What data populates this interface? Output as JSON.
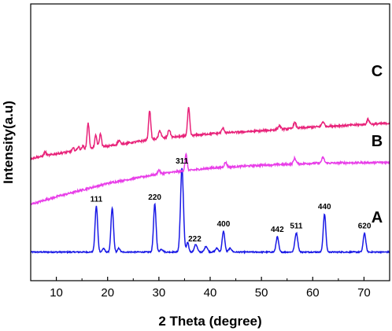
{
  "chart_data": {
    "type": "line",
    "xlabel": "2 Theta (degree)",
    "ylabel": "Intensity(a.u)",
    "xlim": [
      5,
      75
    ],
    "xticks": [
      10,
      20,
      30,
      40,
      50,
      60,
      70
    ],
    "grid": false,
    "y_ticks_shown": false,
    "series": [
      {
        "name": "A",
        "color": "#1a1ae6",
        "baseline": 10,
        "noise": 0.6,
        "peaks": [
          {
            "x": 17.8,
            "height": 48,
            "width": 0.35
          },
          {
            "x": 19.2,
            "height": 4,
            "width": 0.3
          },
          {
            "x": 20.9,
            "height": 46,
            "width": 0.35
          },
          {
            "x": 22.2,
            "height": 4,
            "width": 0.3
          },
          {
            "x": 29.2,
            "height": 50,
            "width": 0.35
          },
          {
            "x": 30.5,
            "height": 3,
            "width": 0.4
          },
          {
            "x": 34.5,
            "height": 88,
            "width": 0.4
          },
          {
            "x": 35.6,
            "height": 10,
            "width": 0.3
          },
          {
            "x": 37.2,
            "height": 8,
            "width": 0.4
          },
          {
            "x": 39.2,
            "height": 6,
            "width": 0.4
          },
          {
            "x": 41.3,
            "height": 4,
            "width": 0.4
          },
          {
            "x": 42.6,
            "height": 22,
            "width": 0.35
          },
          {
            "x": 43.9,
            "height": 4,
            "width": 0.4
          },
          {
            "x": 53.1,
            "height": 16,
            "width": 0.35
          },
          {
            "x": 56.8,
            "height": 20,
            "width": 0.4
          },
          {
            "x": 62.3,
            "height": 40,
            "width": 0.35
          },
          {
            "x": 70.1,
            "height": 20,
            "width": 0.35
          }
        ],
        "peak_labels": [
          {
            "x": 17.8,
            "text": "111"
          },
          {
            "x": 29.2,
            "text": "220"
          },
          {
            "x": 34.5,
            "text": "311"
          },
          {
            "x": 37.0,
            "text": "222"
          },
          {
            "x": 42.6,
            "text": "400"
          },
          {
            "x": 53.1,
            "text": "442"
          },
          {
            "x": 56.8,
            "text": "511"
          },
          {
            "x": 62.3,
            "text": "440"
          },
          {
            "x": 70.1,
            "text": "620"
          }
        ]
      },
      {
        "name": "B",
        "color": "#e83ee8",
        "baseline_points": [
          [
            5,
            60
          ],
          [
            10,
            68
          ],
          [
            20,
            82
          ],
          [
            30,
            92
          ],
          [
            40,
            98
          ],
          [
            50,
            101
          ],
          [
            60,
            103
          ],
          [
            75,
            104
          ]
        ],
        "noise": 1.0,
        "peaks": [
          {
            "x": 30.0,
            "height": 4,
            "width": 0.3
          },
          {
            "x": 35.3,
            "height": 17,
            "width": 0.3
          },
          {
            "x": 43.0,
            "height": 5,
            "width": 0.35
          },
          {
            "x": 56.5,
            "height": 6,
            "width": 0.35
          },
          {
            "x": 62.0,
            "height": 6,
            "width": 0.35
          }
        ]
      },
      {
        "name": "C",
        "color": "#e8237a",
        "baseline_points": [
          [
            5,
            108
          ],
          [
            10,
            113
          ],
          [
            20,
            121
          ],
          [
            30,
            129
          ],
          [
            40,
            134
          ],
          [
            50,
            137
          ],
          [
            60,
            141
          ],
          [
            75,
            145
          ]
        ],
        "noise": 1.0,
        "peaks": [
          {
            "x": 7.8,
            "height": 4,
            "width": 0.3
          },
          {
            "x": 13.3,
            "height": 3,
            "width": 0.3
          },
          {
            "x": 14.3,
            "height": 4,
            "width": 0.3
          },
          {
            "x": 15.2,
            "height": 4,
            "width": 0.3
          },
          {
            "x": 16.2,
            "height": 27,
            "width": 0.3
          },
          {
            "x": 17.7,
            "height": 13,
            "width": 0.3
          },
          {
            "x": 18.6,
            "height": 14,
            "width": 0.3
          },
          {
            "x": 22.2,
            "height": 4,
            "width": 0.35
          },
          {
            "x": 28.2,
            "height": 31,
            "width": 0.3
          },
          {
            "x": 30.2,
            "height": 8,
            "width": 0.35
          },
          {
            "x": 32.0,
            "height": 8,
            "width": 0.35
          },
          {
            "x": 35.8,
            "height": 29,
            "width": 0.3
          },
          {
            "x": 42.5,
            "height": 5,
            "width": 0.35
          },
          {
            "x": 53.5,
            "height": 4,
            "width": 0.35
          },
          {
            "x": 56.5,
            "height": 6,
            "width": 0.35
          },
          {
            "x": 62.0,
            "height": 5,
            "width": 0.35
          },
          {
            "x": 70.8,
            "height": 5,
            "width": 0.35
          }
        ]
      }
    ]
  }
}
